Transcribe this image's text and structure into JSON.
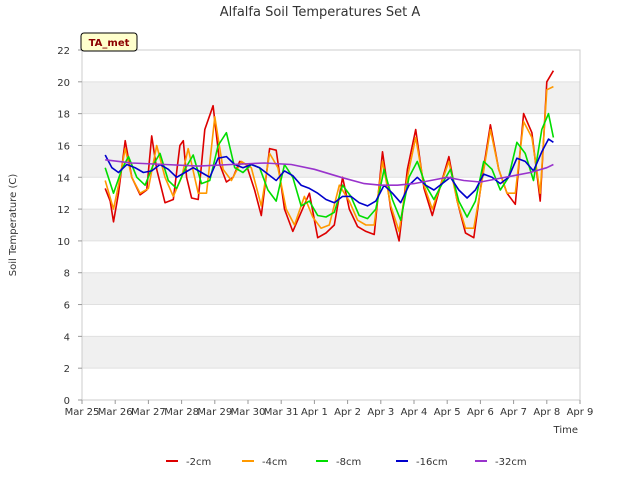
{
  "chart_data": {
    "type": "line",
    "title": "Alfalfa Soil Temperatures Set A",
    "xlabel": "Time",
    "ylabel": "Soil Temperature (C)",
    "badge": "TA_met",
    "ylim": [
      0,
      22
    ],
    "yticks": [
      0,
      2,
      4,
      6,
      8,
      10,
      12,
      14,
      16,
      18,
      20,
      22
    ],
    "xlim": [
      0,
      15
    ],
    "xticks": [
      {
        "x": 0,
        "label": "Mar 25"
      },
      {
        "x": 1,
        "label": "Mar 26"
      },
      {
        "x": 2,
        "label": "Mar 27"
      },
      {
        "x": 3,
        "label": "Mar 28"
      },
      {
        "x": 4,
        "label": "Mar 29"
      },
      {
        "x": 5,
        "label": "Mar 30"
      },
      {
        "x": 6,
        "label": "Mar 31"
      },
      {
        "x": 7,
        "label": "Apr 1"
      },
      {
        "x": 8,
        "label": "Apr 2"
      },
      {
        "x": 9,
        "label": "Apr 3"
      },
      {
        "x": 10,
        "label": "Apr 4"
      },
      {
        "x": 11,
        "label": "Apr 5"
      },
      {
        "x": 12,
        "label": "Apr 6"
      },
      {
        "x": 13,
        "label": "Apr 7"
      },
      {
        "x": 14,
        "label": "Apr 8"
      },
      {
        "x": 15,
        "label": "Apr 9"
      }
    ],
    "grid": true,
    "legend_position": "bottom",
    "series": [
      {
        "name": "-2cm",
        "color": "#dd0000",
        "x": [
          0.7,
          0.85,
          0.95,
          1.1,
          1.3,
          1.5,
          1.75,
          1.95,
          2.1,
          2.25,
          2.5,
          2.75,
          2.95,
          3.05,
          3.15,
          3.3,
          3.5,
          3.7,
          3.95,
          4.15,
          4.35,
          4.55,
          4.75,
          4.95,
          5.2,
          5.4,
          5.65,
          5.85,
          6.1,
          6.35,
          6.6,
          6.85,
          7.1,
          7.35,
          7.6,
          7.85,
          8.05,
          8.3,
          8.55,
          8.8,
          9.05,
          9.3,
          9.55,
          9.8,
          10.05,
          10.3,
          10.55,
          10.8,
          11.05,
          11.3,
          11.55,
          11.8,
          12.05,
          12.3,
          12.55,
          12.8,
          13.05,
          13.3,
          13.55,
          13.8,
          14.0,
          14.2
        ],
        "y": [
          13.3,
          12.5,
          11.2,
          13.0,
          16.3,
          14.0,
          12.9,
          13.2,
          16.6,
          14.5,
          12.4,
          12.6,
          16.0,
          16.3,
          14.0,
          12.7,
          12.6,
          17.0,
          18.5,
          14.8,
          13.7,
          14.0,
          15.0,
          14.8,
          13.2,
          11.6,
          15.8,
          15.7,
          12.0,
          10.6,
          11.8,
          13.0,
          10.2,
          10.5,
          11.0,
          14.0,
          12.0,
          10.9,
          10.6,
          10.4,
          15.6,
          12.0,
          10.0,
          14.5,
          17.0,
          13.3,
          11.6,
          13.5,
          15.3,
          12.5,
          10.5,
          10.2,
          14.0,
          17.3,
          14.5,
          13.0,
          12.3,
          18.0,
          16.8,
          12.5,
          20.0,
          20.7
        ]
      },
      {
        "name": "-4cm",
        "color": "#ff9900",
        "x": [
          0.7,
          0.95,
          1.1,
          1.3,
          1.5,
          1.75,
          2.0,
          2.25,
          2.5,
          2.75,
          3.0,
          3.2,
          3.5,
          3.75,
          4.0,
          4.25,
          4.5,
          4.8,
          5.1,
          5.4,
          5.65,
          5.9,
          6.15,
          6.4,
          6.7,
          6.95,
          7.2,
          7.45,
          7.75,
          8.05,
          8.3,
          8.55,
          8.8,
          9.05,
          9.3,
          9.55,
          9.8,
          10.05,
          10.3,
          10.55,
          10.8,
          11.05,
          11.3,
          11.55,
          11.8,
          12.05,
          12.3,
          12.55,
          12.8,
          13.05,
          13.3,
          13.55,
          13.8,
          14.0,
          14.2
        ],
        "y": [
          13.8,
          12.0,
          13.5,
          15.8,
          14.0,
          13.0,
          13.3,
          16.0,
          14.0,
          12.8,
          14.0,
          15.8,
          13.0,
          13.0,
          17.8,
          14.5,
          13.8,
          15.0,
          14.6,
          12.2,
          15.5,
          14.6,
          12.0,
          11.0,
          12.8,
          11.5,
          10.8,
          11.0,
          13.5,
          12.5,
          11.3,
          11.0,
          11.0,
          15.0,
          12.2,
          10.6,
          14.0,
          16.5,
          13.5,
          12.0,
          13.5,
          15.0,
          12.5,
          10.8,
          10.8,
          13.8,
          17.0,
          14.5,
          13.0,
          13.0,
          17.5,
          16.5,
          13.0,
          19.5,
          19.7
        ]
      },
      {
        "name": "-8cm",
        "color": "#00dd00",
        "x": [
          0.7,
          0.95,
          1.2,
          1.4,
          1.65,
          1.9,
          2.15,
          2.35,
          2.6,
          2.85,
          3.1,
          3.35,
          3.6,
          3.85,
          4.1,
          4.35,
          4.6,
          4.85,
          5.1,
          5.35,
          5.6,
          5.85,
          6.1,
          6.35,
          6.6,
          6.85,
          7.1,
          7.35,
          7.6,
          7.85,
          8.1,
          8.35,
          8.6,
          8.85,
          9.1,
          9.35,
          9.6,
          9.85,
          10.1,
          10.35,
          10.6,
          10.85,
          11.1,
          11.35,
          11.6,
          11.85,
          12.1,
          12.35,
          12.6,
          12.85,
          13.1,
          13.35,
          13.6,
          13.85,
          14.05,
          14.2
        ],
        "y": [
          14.6,
          13.0,
          14.5,
          15.3,
          14.0,
          13.5,
          14.8,
          15.5,
          13.8,
          13.3,
          14.5,
          15.4,
          13.6,
          13.8,
          16.0,
          16.8,
          14.6,
          14.3,
          14.8,
          14.6,
          13.2,
          12.5,
          14.8,
          14.0,
          12.2,
          12.5,
          11.6,
          11.5,
          11.8,
          13.5,
          12.8,
          11.6,
          11.4,
          12.0,
          14.5,
          12.6,
          11.3,
          14.0,
          15.0,
          13.5,
          12.6,
          13.6,
          14.5,
          12.5,
          11.5,
          12.5,
          15.0,
          14.5,
          13.2,
          14.0,
          16.2,
          15.5,
          13.8,
          17.0,
          18.0,
          16.5
        ]
      },
      {
        "name": "-16cm",
        "color": "#0000cc",
        "x": [
          0.7,
          0.9,
          1.1,
          1.35,
          1.6,
          1.85,
          2.1,
          2.35,
          2.6,
          2.85,
          3.1,
          3.35,
          3.6,
          3.85,
          4.1,
          4.35,
          4.6,
          4.85,
          5.1,
          5.35,
          5.6,
          5.85,
          6.1,
          6.35,
          6.6,
          6.85,
          7.1,
          7.35,
          7.6,
          7.85,
          8.1,
          8.35,
          8.6,
          8.85,
          9.1,
          9.35,
          9.6,
          9.85,
          10.1,
          10.35,
          10.6,
          10.85,
          11.1,
          11.35,
          11.6,
          11.85,
          12.1,
          12.35,
          12.6,
          12.85,
          13.1,
          13.35,
          13.6,
          13.85,
          14.05,
          14.2
        ],
        "y": [
          15.4,
          14.6,
          14.3,
          14.8,
          14.6,
          14.3,
          14.4,
          14.8,
          14.5,
          14.0,
          14.3,
          14.6,
          14.3,
          14.0,
          15.2,
          15.3,
          14.8,
          14.6,
          14.8,
          14.6,
          14.2,
          13.8,
          14.4,
          14.1,
          13.5,
          13.3,
          13.0,
          12.6,
          12.4,
          12.8,
          12.8,
          12.4,
          12.2,
          12.5,
          13.5,
          13.0,
          12.4,
          13.5,
          14.0,
          13.5,
          13.2,
          13.6,
          14.0,
          13.2,
          12.7,
          13.2,
          14.2,
          14.0,
          13.6,
          14.0,
          15.2,
          15.0,
          14.4,
          15.6,
          16.4,
          16.2
        ]
      },
      {
        "name": "-32cm",
        "color": "#9933cc",
        "x": [
          0.7,
          1.5,
          2.5,
          3.5,
          4.5,
          5.5,
          6.3,
          7.0,
          7.8,
          8.5,
          9.0,
          9.5,
          10.0,
          10.5,
          11.0,
          11.5,
          12.0,
          12.5,
          13.0,
          13.5,
          14.0,
          14.2
        ],
        "y": [
          15.1,
          14.9,
          14.8,
          14.7,
          14.8,
          14.9,
          14.8,
          14.5,
          14.0,
          13.6,
          13.5,
          13.5,
          13.6,
          13.8,
          14.0,
          13.8,
          13.7,
          13.9,
          14.1,
          14.3,
          14.6,
          14.8
        ]
      }
    ]
  }
}
